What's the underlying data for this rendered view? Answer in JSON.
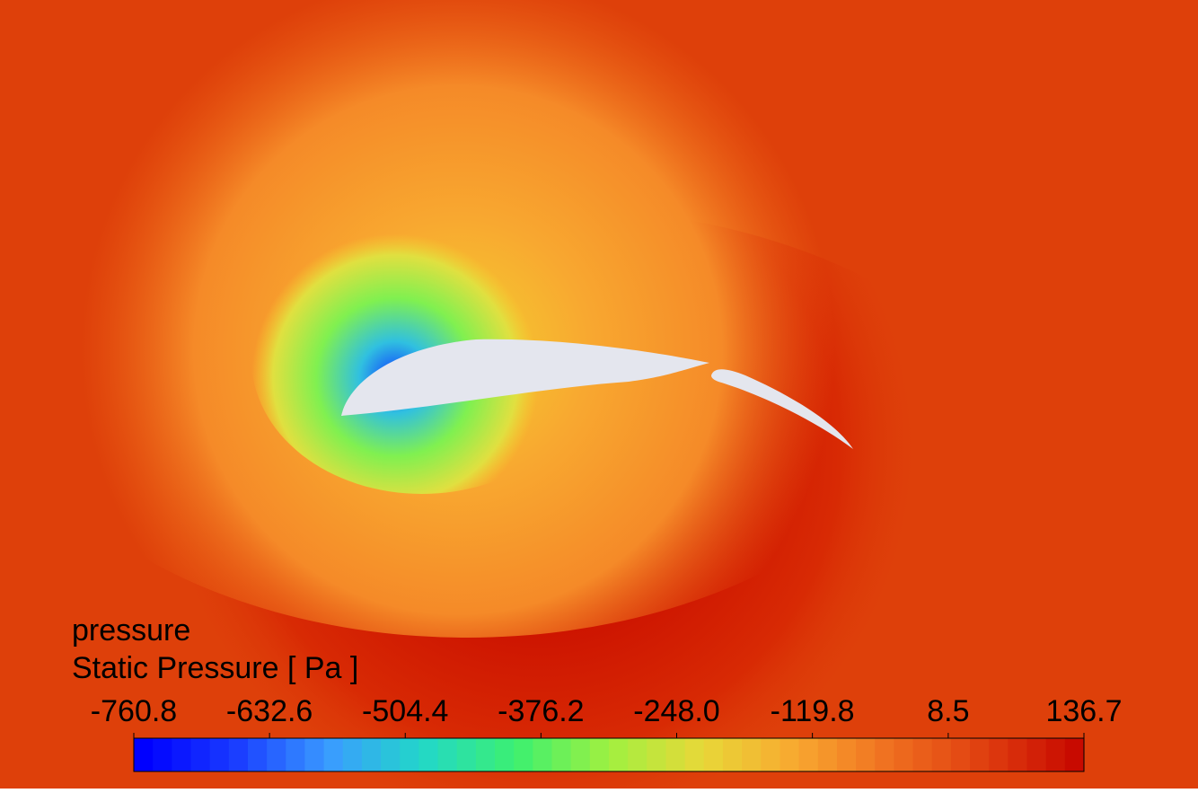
{
  "chart_data": {
    "type": "contour",
    "title": "pressure",
    "subtitle": "Static Pressure [ Pa ]",
    "clim": [
      -760.8,
      136.7
    ],
    "cticks": [
      -760.8,
      -632.6,
      -504.4,
      -376.2,
      {
        "value": -248,
        "label": "-248.0"
      },
      -119.8,
      8.5,
      136.7
    ],
    "colormap": [
      "#0000ff",
      "#1a3cff",
      "#3a9cff",
      "#22d8c8",
      "#3cf070",
      "#a0f040",
      "#e8d838",
      "#f8a830",
      "#f07020",
      "#e04010",
      "#c80a00"
    ]
  }
}
